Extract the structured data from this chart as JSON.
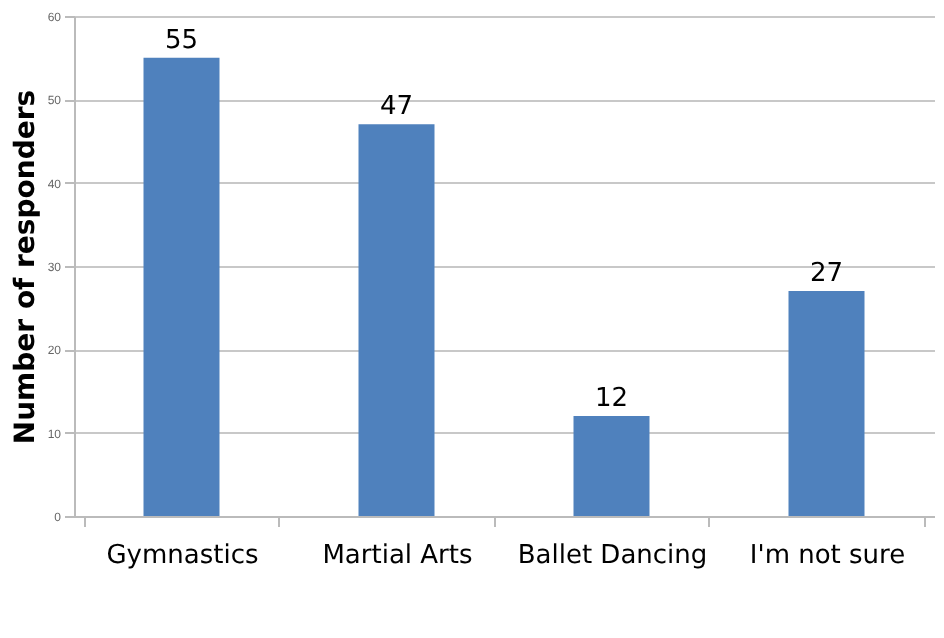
{
  "chart_data": {
    "type": "bar",
    "ylabel": "Number of responders",
    "categories": [
      "Gymnastics",
      "Martial Arts",
      "Ballet Dancing",
      "I'm not sure"
    ],
    "values": [
      55,
      47,
      12,
      27
    ],
    "color": "#4f81bd",
    "ylim": [
      0,
      60
    ],
    "yticks": [
      0,
      10,
      20,
      30,
      40,
      50,
      60
    ],
    "grid": "y",
    "data_labels": true
  }
}
